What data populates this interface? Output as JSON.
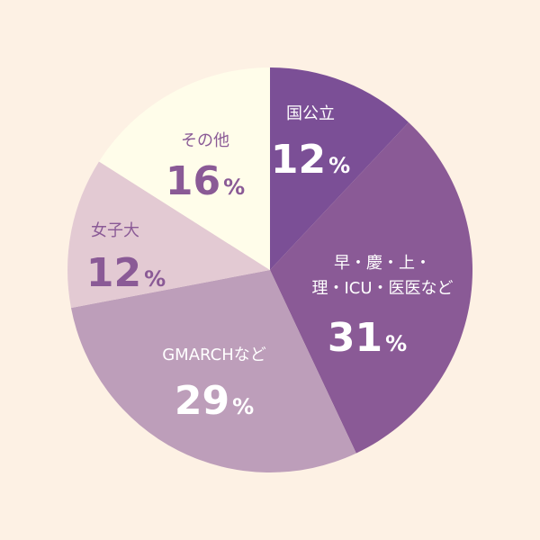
{
  "chart_data": {
    "type": "pie",
    "start": "top",
    "direction": "clockwise",
    "slices": [
      {
        "label_lines": [
          "国公立"
        ],
        "value_text": "12",
        "percent_sign": "%",
        "value": 12,
        "color": "#7b4f96",
        "text_color": "#ffffff"
      },
      {
        "label_lines": [
          "早・慶・上・",
          "理・ICU・医医など"
        ],
        "value_text": "31",
        "percent_sign": "%",
        "value": 31,
        "color": "#8a5a96",
        "text_color": "#ffffff"
      },
      {
        "label_lines": [
          "GMARCHなど"
        ],
        "value_text": "29",
        "percent_sign": "%",
        "value": 29,
        "color": "#bd9eba",
        "text_color": "#ffffff"
      },
      {
        "label_lines": [
          "女子大"
        ],
        "value_text": "12",
        "percent_sign": "%",
        "value": 12,
        "color": "#e3cad3",
        "text_color": "#8a5a96"
      },
      {
        "label_lines": [
          "その他"
        ],
        "value_text": "16",
        "percent_sign": "%",
        "value": 16,
        "color": "#fffdea",
        "text_color": "#8a5a96"
      }
    ]
  }
}
